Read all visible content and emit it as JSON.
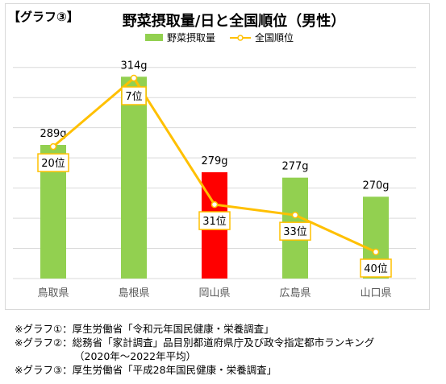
{
  "graph_tag": "【グラフ③】",
  "chart_data": {
    "type": "bar",
    "title": "野菜摂取量/日と全国順位（男性）",
    "categories": [
      "鳥取県",
      "島根県",
      "岡山県",
      "広島県",
      "山口県"
    ],
    "series": [
      {
        "name": "野菜摂取量",
        "values": [
          289,
          314,
          279,
          277,
          270
        ],
        "labels": [
          "289g",
          "314g",
          "279g",
          "277g",
          "270g"
        ],
        "colors": [
          "#92d050",
          "#92d050",
          "#ff0000",
          "#92d050",
          "#92d050"
        ]
      },
      {
        "name": "全国順位",
        "type": "line",
        "values": [
          20,
          7,
          31,
          33,
          40
        ],
        "labels": [
          "20位",
          "7位",
          "31位",
          "33位",
          "40位"
        ],
        "color": "#ffc000"
      }
    ],
    "legend_position": "top",
    "grid": true
  },
  "notes": [
    "※グラフ①：厚生労働省「令和元年国民健康・栄養調査」",
    "※グラフ②：総務省「家計調査」品目別都道府県庁及び政令指定都市ランキング",
    "（2020年～2022年平均）",
    "※グラフ③：厚生労働省「平成28年国民健康・栄養調査」"
  ]
}
